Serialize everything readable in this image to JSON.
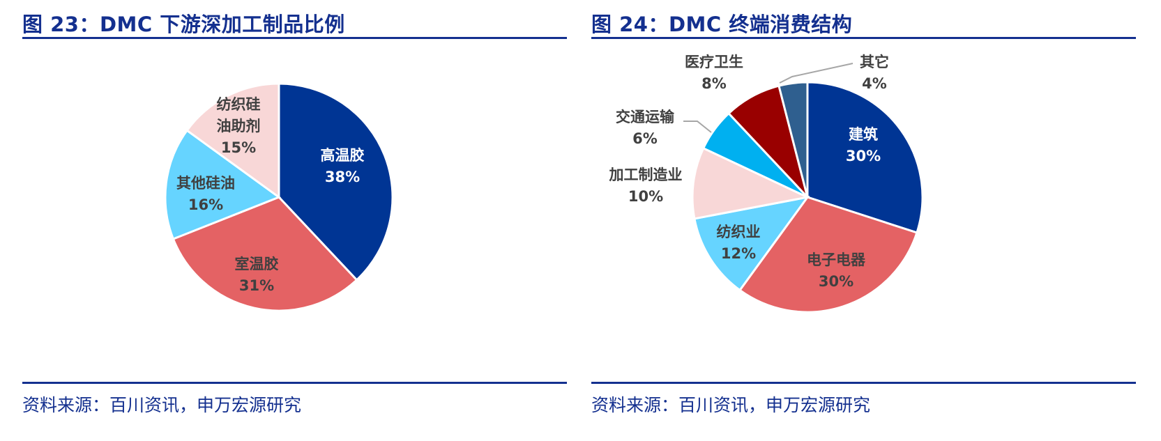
{
  "left": {
    "title": "图 23：DMC 下游深加工制品比例",
    "source": "资料来源：百川资讯，申万宏源研究"
  },
  "right": {
    "title": "图 24：DMC 终端消费结构",
    "source": "资料来源：百川资讯，申万宏源研究"
  },
  "chart_data": [
    {
      "type": "pie",
      "title": "图 23：DMC 下游深加工制品比例",
      "slices": [
        {
          "label": "高温胶",
          "value": 38,
          "display": "38%",
          "color": "#003594",
          "text_color": "#ffffff"
        },
        {
          "label": "室温胶",
          "value": 31,
          "display": "31%",
          "color": "#e46264",
          "text_color": "#404040"
        },
        {
          "label": "其他硅油",
          "value": 16,
          "display": "16%",
          "color": "#66d4ff",
          "text_color": "#404040"
        },
        {
          "label": "纺织硅油助剂",
          "display_lines": [
            "纺织硅",
            "油助剂"
          ],
          "value": 15,
          "display": "15%",
          "color": "#f8d7d7",
          "text_color": "#404040"
        }
      ]
    },
    {
      "type": "pie",
      "title": "图 24：DMC 终端消费结构",
      "slices": [
        {
          "label": "建筑",
          "value": 30,
          "display": "30%",
          "color": "#003594",
          "text_color": "#ffffff"
        },
        {
          "label": "电子电器",
          "value": 30,
          "display": "30%",
          "color": "#e46264",
          "text_color": "#404040"
        },
        {
          "label": "纺织业",
          "value": 12,
          "display": "12%",
          "color": "#66d4ff",
          "text_color": "#404040"
        },
        {
          "label": "加工制造业",
          "value": 10,
          "display": "10%",
          "color": "#f8d7d7",
          "text_color": "#404040"
        },
        {
          "label": "交通运输",
          "value": 6,
          "display": "6%",
          "color": "#00b0f0",
          "text_color": "#404040"
        },
        {
          "label": "医疗卫生",
          "value": 8,
          "display": "8%",
          "color": "#990000",
          "text_color": "#404040"
        },
        {
          "label": "其它",
          "value": 4,
          "display": "4%",
          "color": "#2f5f8f",
          "text_color": "#404040"
        }
      ]
    }
  ]
}
